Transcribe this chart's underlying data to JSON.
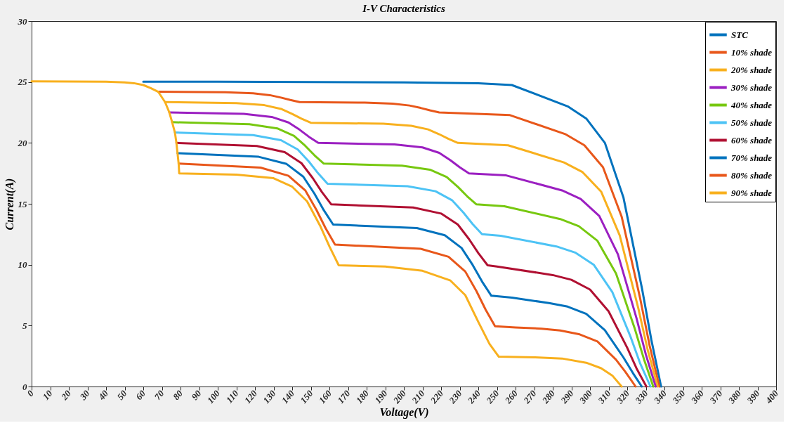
{
  "chart_data": {
    "type": "line",
    "title": "I-V Characteristics",
    "xlabel": "Voltage(V)",
    "ylabel": "Current(A)",
    "xlim": [
      0,
      400
    ],
    "ylim": [
      0,
      30
    ],
    "xticks": [
      0,
      10,
      20,
      30,
      40,
      50,
      60,
      70,
      80,
      90,
      100,
      110,
      120,
      130,
      140,
      150,
      160,
      170,
      180,
      190,
      200,
      210,
      220,
      230,
      240,
      250,
      260,
      270,
      280,
      290,
      300,
      310,
      320,
      330,
      340,
      350,
      360,
      370,
      380,
      390,
      400
    ],
    "yticks": [
      0,
      5,
      10,
      15,
      20,
      25,
      30
    ],
    "grid": false,
    "legend": "top right",
    "line_style": "solid",
    "series": [
      {
        "name": "STC",
        "color": "#0072bd",
        "x": [
          60,
          100,
          200,
          240,
          258,
          288,
          298,
          308,
          318,
          328,
          333,
          338.2
        ],
        "values": [
          25.02,
          25.02,
          24.97,
          24.9,
          24.75,
          23.0,
          22.0,
          20.0,
          15.5,
          8.0,
          3.8,
          0
        ]
      },
      {
        "name": "10% shade",
        "color": "#e8571a",
        "x": [
          68,
          104,
          119,
          128,
          134,
          139,
          144,
          179,
          194,
          203,
          209,
          214,
          219,
          257,
          287,
          297,
          307,
          317,
          327,
          332,
          337.3
        ],
        "values": [
          24.2,
          24.16,
          24.07,
          23.92,
          23.72,
          23.52,
          23.35,
          23.31,
          23.22,
          23.07,
          22.87,
          22.67,
          22.5,
          22.28,
          20.7,
          19.8,
          18.0,
          13.95,
          7.2,
          3.38,
          0
        ]
      },
      {
        "name": "20% shade",
        "color": "#f8b01e",
        "x": [
          71.7,
          110,
          125,
          134,
          140,
          145,
          150,
          189,
          204,
          213,
          219,
          224,
          229,
          256,
          286,
          296,
          306,
          316,
          326,
          331,
          336.4
        ],
        "values": [
          23.35,
          23.27,
          23.1,
          22.79,
          22.38,
          21.99,
          21.65,
          21.57,
          21.4,
          21.11,
          20.71,
          20.33,
          20.0,
          19.8,
          18.4,
          17.6,
          16,
          12.4,
          6.4,
          3,
          0
        ]
      },
      {
        "name": "30% shade",
        "color": "#9b1fc1",
        "x": [
          74,
          114,
          129,
          138,
          144,
          149,
          154,
          195,
          210,
          219,
          225,
          230,
          235,
          255,
          285,
          295,
          305,
          315,
          325,
          330,
          335.3
        ],
        "values": [
          22.5,
          22.38,
          22.13,
          21.68,
          21.08,
          20.5,
          20.0,
          19.88,
          19.63,
          19.18,
          18.58,
          18.0,
          17.5,
          17.33,
          16.1,
          15.4,
          14,
          10.85,
          5.6,
          2.63,
          0
        ]
      },
      {
        "name": "40% shade",
        "color": "#77c810",
        "x": [
          75.5,
          117,
          132,
          141,
          147,
          152,
          157,
          199,
          214,
          223,
          229,
          234,
          239,
          254,
          284,
          294,
          304,
          314,
          324,
          329,
          334
        ],
        "values": [
          21.7,
          21.53,
          21.19,
          20.58,
          19.76,
          18.98,
          18.3,
          18.13,
          17.8,
          17.2,
          16.39,
          15.62,
          14.95,
          14.8,
          13.75,
          13.16,
          11.96,
          9.27,
          4.78,
          2.24,
          0
        ]
      },
      {
        "name": "50% shade",
        "color": "#4dc3f5",
        "x": [
          77,
          119,
          134,
          143,
          149,
          154,
          159,
          202,
          217,
          226,
          232,
          237,
          242,
          252,
          282,
          292,
          302,
          312,
          322,
          327,
          332.5
        ],
        "values": [
          20.85,
          20.64,
          20.22,
          19.46,
          18.46,
          17.49,
          16.65,
          16.44,
          16.03,
          15.28,
          14.28,
          13.33,
          12.5,
          12.38,
          11.5,
          11.0,
          10.0,
          7.75,
          4.0,
          1.88,
          0
        ]
      },
      {
        "name": "60% shade",
        "color": "#b01032",
        "x": [
          77.8,
          121,
          136,
          145,
          151,
          156,
          161,
          205,
          220,
          229,
          235,
          240,
          245,
          250,
          280,
          290,
          300,
          310,
          320,
          325,
          330.3
        ],
        "values": [
          20.0,
          19.75,
          19.24,
          18.33,
          17.12,
          15.96,
          14.95,
          14.7,
          14.2,
          13.3,
          12.1,
          10.95,
          9.95,
          9.85,
          9.15,
          8.76,
          7.96,
          6.17,
          3.18,
          1.49,
          0
        ]
      },
      {
        "name": "70% shade",
        "color": "#0072bd",
        "x": [
          78.4,
          122,
          137,
          146,
          152,
          157,
          162,
          207,
          222,
          231,
          237,
          242,
          247,
          258,
          278,
          288,
          298,
          308,
          318,
          323,
          327.8
        ],
        "values": [
          19.15,
          18.86,
          18.27,
          17.22,
          15.82,
          14.47,
          13.3,
          13.01,
          12.42,
          11.37,
          9.97,
          8.62,
          7.45,
          7.3,
          6.85,
          6.56,
          5.96,
          4.62,
          2.38,
          1.12,
          0
        ]
      },
      {
        "name": "80% shade",
        "color": "#e8571a",
        "x": [
          79,
          123,
          138,
          147,
          153,
          158,
          163,
          209,
          224,
          233,
          239,
          244,
          249,
          260,
          274,
          284,
          294,
          304,
          314,
          319,
          324.5
        ],
        "values": [
          18.3,
          17.97,
          17.3,
          16.11,
          14.51,
          12.98,
          11.65,
          11.31,
          10.65,
          9.44,
          7.83,
          6.29,
          4.95,
          4.85,
          4.75,
          4.6,
          4.3,
          3.7,
          2.2,
          1.2,
          0
        ]
      },
      {
        "name": "90% shade",
        "color": "#f8b01e",
        "x": [
          0,
          40,
          50,
          55,
          60,
          64,
          68,
          71.7,
          74,
          75.5,
          77,
          77.8,
          78.4,
          79,
          79.3,
          110,
          130,
          140,
          148,
          155,
          160,
          165,
          190,
          210,
          225,
          233,
          240,
          246,
          251,
          270,
          285,
          298,
          306,
          312,
          317
        ],
        "values": [
          25.05,
          25.02,
          24.97,
          24.9,
          24.75,
          24.5,
          24.2,
          23.35,
          22.5,
          21.7,
          20.85,
          20.0,
          19.15,
          18.3,
          17.5,
          17.4,
          17.1,
          16.4,
          15.2,
          13.2,
          11.5,
          9.95,
          9.85,
          9.5,
          8.7,
          7.5,
          5.3,
          3.5,
          2.45,
          2.4,
          2.3,
          1.95,
          1.5,
          0.9,
          0
        ]
      }
    ]
  }
}
